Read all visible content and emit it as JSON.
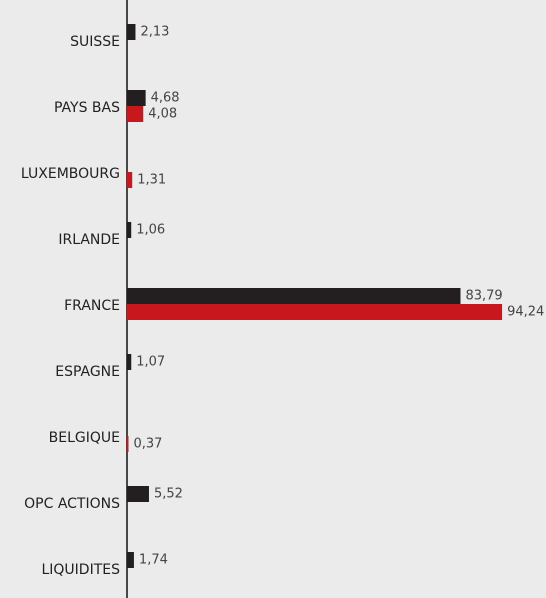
{
  "chart_data": {
    "type": "hbar",
    "categories": [
      "SUISSE",
      "PAYS BAS",
      "LUXEMBOURG",
      "IRLANDE",
      "FRANCE",
      "ESPAGNE",
      "BELGIQUE",
      "OPC ACTIONS",
      "LIQUIDITES"
    ],
    "series": [
      {
        "color": "#231f20",
        "values": [
          2.13,
          4.68,
          null,
          1.06,
          83.79,
          1.07,
          null,
          5.52,
          1.74
        ],
        "value_labels": [
          "2,13",
          "4,68",
          null,
          "1,06",
          "83,79",
          "1,07",
          null,
          "5,52",
          "1,74"
        ]
      },
      {
        "color": "#c8181e",
        "values": [
          null,
          4.08,
          1.31,
          null,
          94.24,
          null,
          0.37,
          null,
          null
        ],
        "value_labels": [
          null,
          "4,08",
          "1,31",
          null,
          "94,24",
          null,
          "0,37",
          null,
          null
        ]
      }
    ],
    "xlim": [
      0,
      100
    ]
  }
}
